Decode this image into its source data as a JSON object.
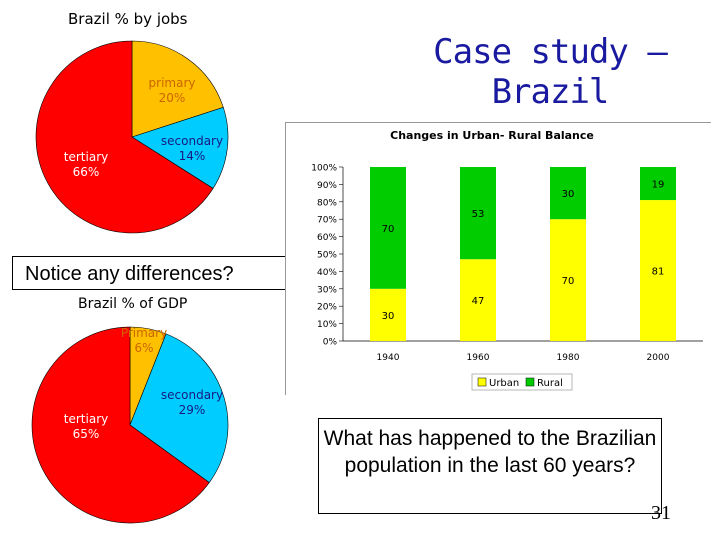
{
  "slide": {
    "title": "Case study – Brazil",
    "notice": "Notice any differences?",
    "question": "What has happened to the Brazilian population in the last 60 years?",
    "page_number": "31"
  },
  "chart_data": [
    {
      "type": "pie",
      "title": "Brazil % by jobs",
      "slices": [
        {
          "label": "primary",
          "value": 20,
          "value_label": "20%",
          "color": "#ffc000"
        },
        {
          "label": "secondary",
          "value": 14,
          "value_label": "14%",
          "color": "#00ccff"
        },
        {
          "label": "tertiary",
          "value": 66,
          "value_label": "66%",
          "color": "#ff0000"
        }
      ]
    },
    {
      "type": "pie",
      "title": "Brazil % of GDP",
      "slices": [
        {
          "label": "Primary",
          "value": 6,
          "value_label": "6%",
          "color": "#ffc000"
        },
        {
          "label": "secondary",
          "value": 29,
          "value_label": "29%",
          "color": "#00ccff"
        },
        {
          "label": "tertiary",
          "value": 65,
          "value_label": "65%",
          "color": "#ff0000"
        }
      ]
    },
    {
      "type": "bar",
      "stacked": true,
      "title": "Changes in Urban- Rural Balance",
      "categories": [
        "1940",
        "1960",
        "1980",
        "2000"
      ],
      "series": [
        {
          "name": "Urban",
          "color": "#ffff00",
          "values": [
            30,
            47,
            70,
            81
          ]
        },
        {
          "name": "Rural",
          "color": "#00cc00",
          "values": [
            70,
            53,
            30,
            19
          ]
        }
      ],
      "y_ticks": [
        "0%",
        "10%",
        "20%",
        "30%",
        "40%",
        "50%",
        "60%",
        "70%",
        "80%",
        "90%",
        "100%"
      ],
      "ylim": [
        0,
        100
      ],
      "legend_position": "bottom",
      "grid": false
    }
  ]
}
